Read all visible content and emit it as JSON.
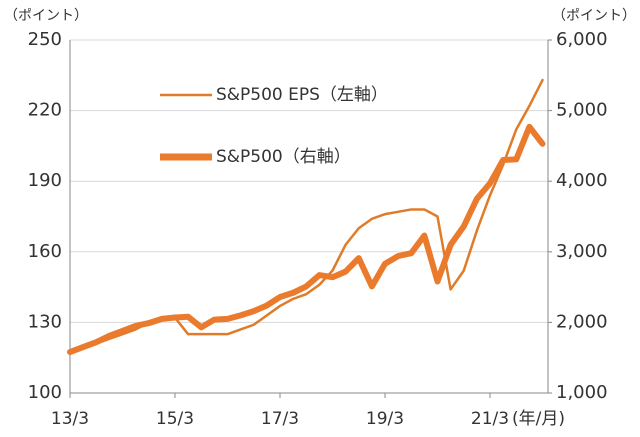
{
  "chart_data": {
    "type": "line",
    "y_unit_label": "（ポイント）",
    "y2_unit_label": "（ポイント）",
    "x_unit_label": "(年/月)",
    "categories": [
      "13/3",
      null,
      null,
      null,
      null,
      null,
      null,
      null,
      "15/3",
      null,
      null,
      null,
      null,
      null,
      null,
      null,
      "17/3",
      null,
      null,
      null,
      null,
      null,
      null,
      null,
      "19/3",
      null,
      null,
      null,
      null,
      null,
      null,
      null,
      "21/3",
      null,
      null,
      null,
      null
    ],
    "series": [
      {
        "name": "S&P500 EPS（左軸）",
        "color": "#e07b28",
        "width": "thin",
        "values": [
          117,
          119,
          121,
          123,
          125,
          127,
          130,
          131,
          132,
          125,
          125,
          125,
          125,
          127,
          129,
          133,
          137,
          140,
          142,
          146,
          152,
          163,
          170,
          174,
          176,
          177,
          178,
          178,
          175,
          144,
          152,
          169,
          184,
          197,
          212,
          222,
          233
        ]
      },
      {
        "name": "S&P500（右軸）",
        "color": "#ea7a2c",
        "width": "thick",
        "axis": "y2",
        "values": [
          1580,
          1650,
          1720,
          1810,
          1880,
          1950,
          1990,
          2050,
          2070,
          2080,
          1930,
          2040,
          2050,
          2100,
          2160,
          2240,
          2360,
          2420,
          2510,
          2670,
          2640,
          2720,
          2910,
          2510,
          2830,
          2940,
          2980,
          3230,
          2580,
          3100,
          3360,
          3750,
          3970,
          4300,
          4310,
          4770,
          4530
        ]
      }
    ],
    "ylim": [
      100,
      250
    ],
    "yticks": [
      100,
      130,
      160,
      190,
      220,
      250
    ],
    "y2lim": [
      1000,
      6000
    ],
    "y2ticks": [
      {
        "value": 1000,
        "label": "1,000"
      },
      {
        "value": 2000,
        "label": "2,000"
      },
      {
        "value": 3000,
        "label": "3,000"
      },
      {
        "value": 4000,
        "label": "4,000"
      },
      {
        "value": 5000,
        "label": "5,000"
      },
      {
        "value": 6000,
        "label": "6,000"
      }
    ],
    "grid": true
  }
}
